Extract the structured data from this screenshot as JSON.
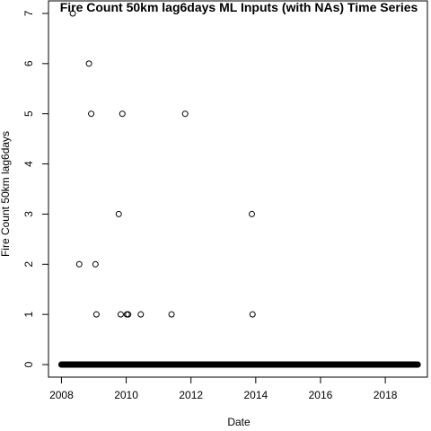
{
  "chart_data": {
    "type": "scatter",
    "title": "Fire Count 50km lag6days ML Inputs (with NAs) Time Series",
    "xlabel": "Date",
    "ylabel": "Fire Count 50km lag6days",
    "xlim": [
      2007.6,
      2019.3
    ],
    "ylim": [
      -0.25,
      7.25
    ],
    "x_ticks": [
      "2008",
      "2010",
      "2012",
      "2014",
      "2016",
      "2018"
    ],
    "y_ticks": [
      "0",
      "1",
      "2",
      "3",
      "4",
      "5",
      "6",
      "7"
    ],
    "grid": false,
    "marker": "open-circle",
    "zero_band": {
      "y": 0,
      "x_start": 2008.0,
      "x_end": 2019.0
    },
    "points": [
      {
        "x": 2008.35,
        "y": 7
      },
      {
        "x": 2008.55,
        "y": 2
      },
      {
        "x": 2008.85,
        "y": 6
      },
      {
        "x": 2008.92,
        "y": 5
      },
      {
        "x": 2009.05,
        "y": 2
      },
      {
        "x": 2009.08,
        "y": 1
      },
      {
        "x": 2009.77,
        "y": 3
      },
      {
        "x": 2009.83,
        "y": 1
      },
      {
        "x": 2009.88,
        "y": 5
      },
      {
        "x": 2010.02,
        "y": 1
      },
      {
        "x": 2010.06,
        "y": 1
      },
      {
        "x": 2010.45,
        "y": 1
      },
      {
        "x": 2011.4,
        "y": 1
      },
      {
        "x": 2011.82,
        "y": 5
      },
      {
        "x": 2013.88,
        "y": 3
      },
      {
        "x": 2013.9,
        "y": 1
      }
    ]
  }
}
